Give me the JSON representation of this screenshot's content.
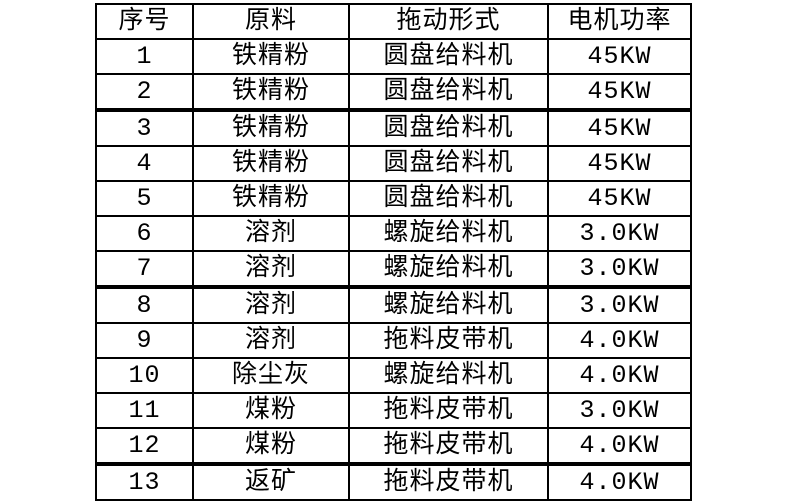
{
  "table": {
    "headers": [
      "序号",
      "原料",
      "拖动形式",
      "电机功率"
    ],
    "rows": [
      [
        "1",
        "铁精粉",
        "圆盘给料机",
        "45KW"
      ],
      [
        "2",
        "铁精粉",
        "圆盘给料机",
        "45KW"
      ],
      [
        "3",
        "铁精粉",
        "圆盘给料机",
        "45KW"
      ],
      [
        "4",
        "铁精粉",
        "圆盘给料机",
        "45KW"
      ],
      [
        "5",
        "铁精粉",
        "圆盘给料机",
        "45KW"
      ],
      [
        "6",
        "溶剂",
        "螺旋给料机",
        "3.0KW"
      ],
      [
        "7",
        "溶剂",
        "螺旋给料机",
        "3.0KW"
      ],
      [
        "8",
        "溶剂",
        "螺旋给料机",
        "3.0KW"
      ],
      [
        "9",
        "溶剂",
        "拖料皮带机",
        "4.0KW"
      ],
      [
        "10",
        "除尘灰",
        "螺旋给料机",
        "4.0KW"
      ],
      [
        "11",
        "煤粉",
        "拖料皮带机",
        "3.0KW"
      ],
      [
        "12",
        "煤粉",
        "拖料皮带机",
        "4.0KW"
      ],
      [
        "13",
        "返矿",
        "拖料皮带机",
        "4.0KW"
      ]
    ],
    "colors": {
      "border": "#000000",
      "text": "#000000",
      "background": "#ffffff"
    }
  }
}
